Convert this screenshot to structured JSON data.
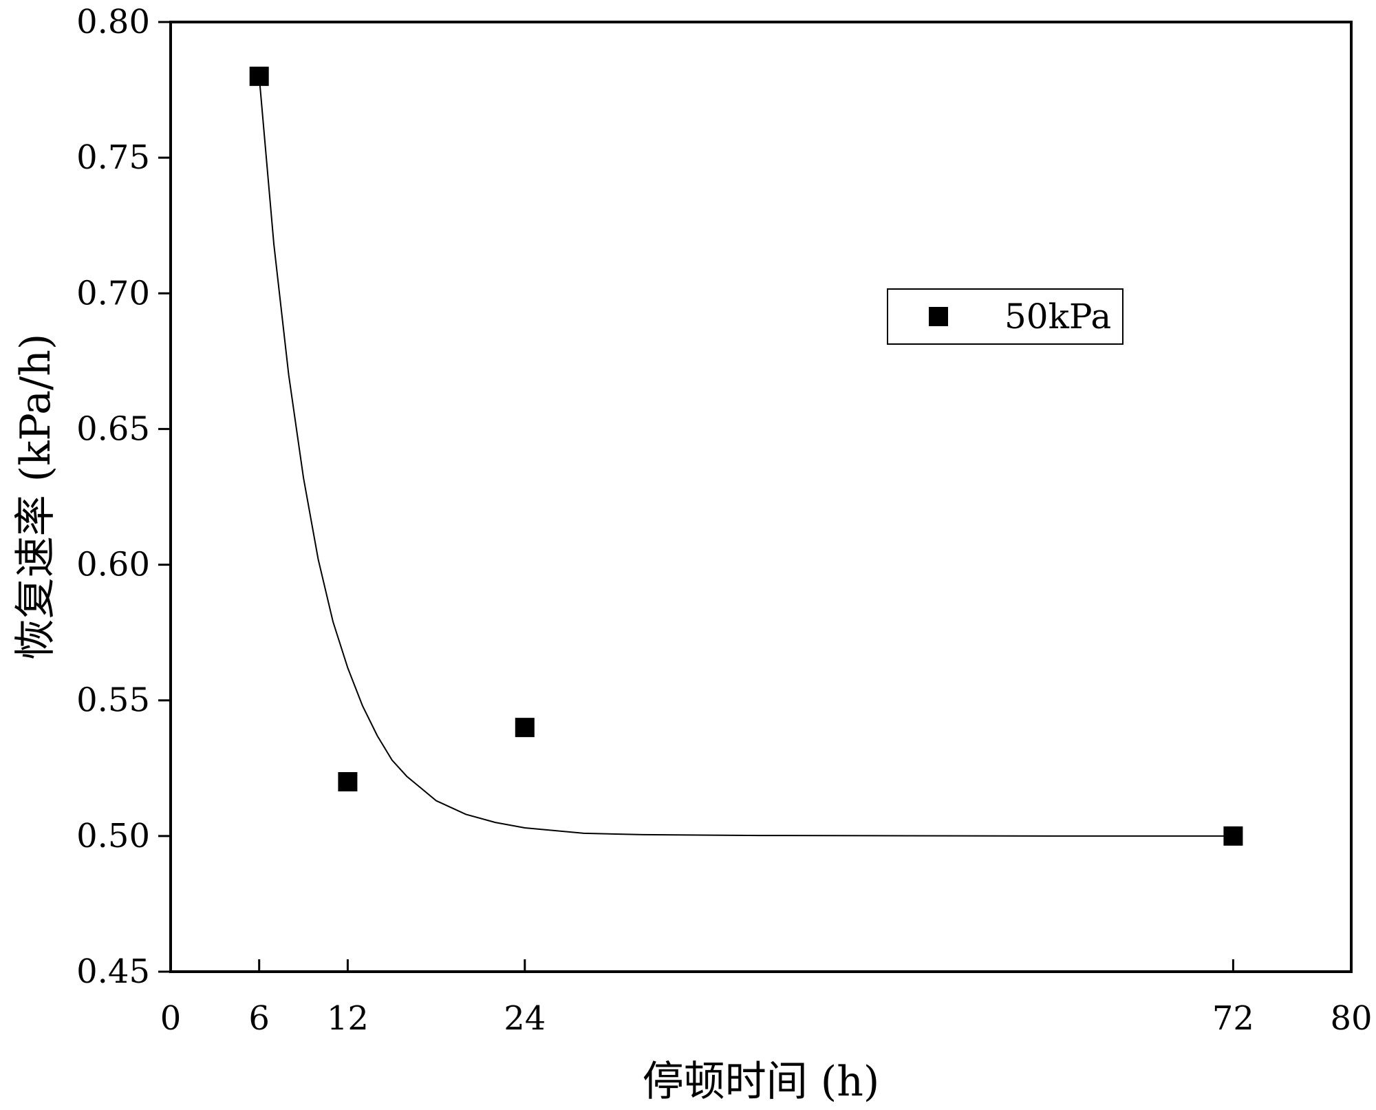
{
  "chart_data": {
    "type": "scatter",
    "xlabel": "停顿时间 (h)",
    "ylabel": "恢复速率 (kPa/h)",
    "xlim": [
      0,
      80
    ],
    "ylim": [
      0.45,
      0.8
    ],
    "x_ticks": [
      "0",
      "6",
      "12",
      "24",
      "72",
      "80"
    ],
    "y_ticks": [
      "0.45",
      "0.50",
      "0.55",
      "0.60",
      "0.65",
      "0.70",
      "0.75",
      "0.80"
    ],
    "grid": false,
    "legend_position": "upper-right",
    "series": [
      {
        "name": "50kPa",
        "marker": "square",
        "color": "#000000",
        "x": [
          6,
          12,
          24,
          72
        ],
        "y": [
          0.78,
          0.52,
          0.54,
          0.5
        ]
      }
    ],
    "fit_curve": {
      "type": "exponential-decay",
      "color": "#000000",
      "x": [
        6,
        7,
        8,
        9,
        10,
        11,
        12,
        13,
        14,
        15,
        16,
        18,
        20,
        22,
        24,
        28,
        32,
        40,
        50,
        60,
        72
      ],
      "y": [
        0.78,
        0.718,
        0.67,
        0.632,
        0.602,
        0.579,
        0.562,
        0.548,
        0.537,
        0.528,
        0.522,
        0.513,
        0.508,
        0.505,
        0.503,
        0.501,
        0.5005,
        0.5002,
        0.5001,
        0.5,
        0.5
      ]
    }
  }
}
